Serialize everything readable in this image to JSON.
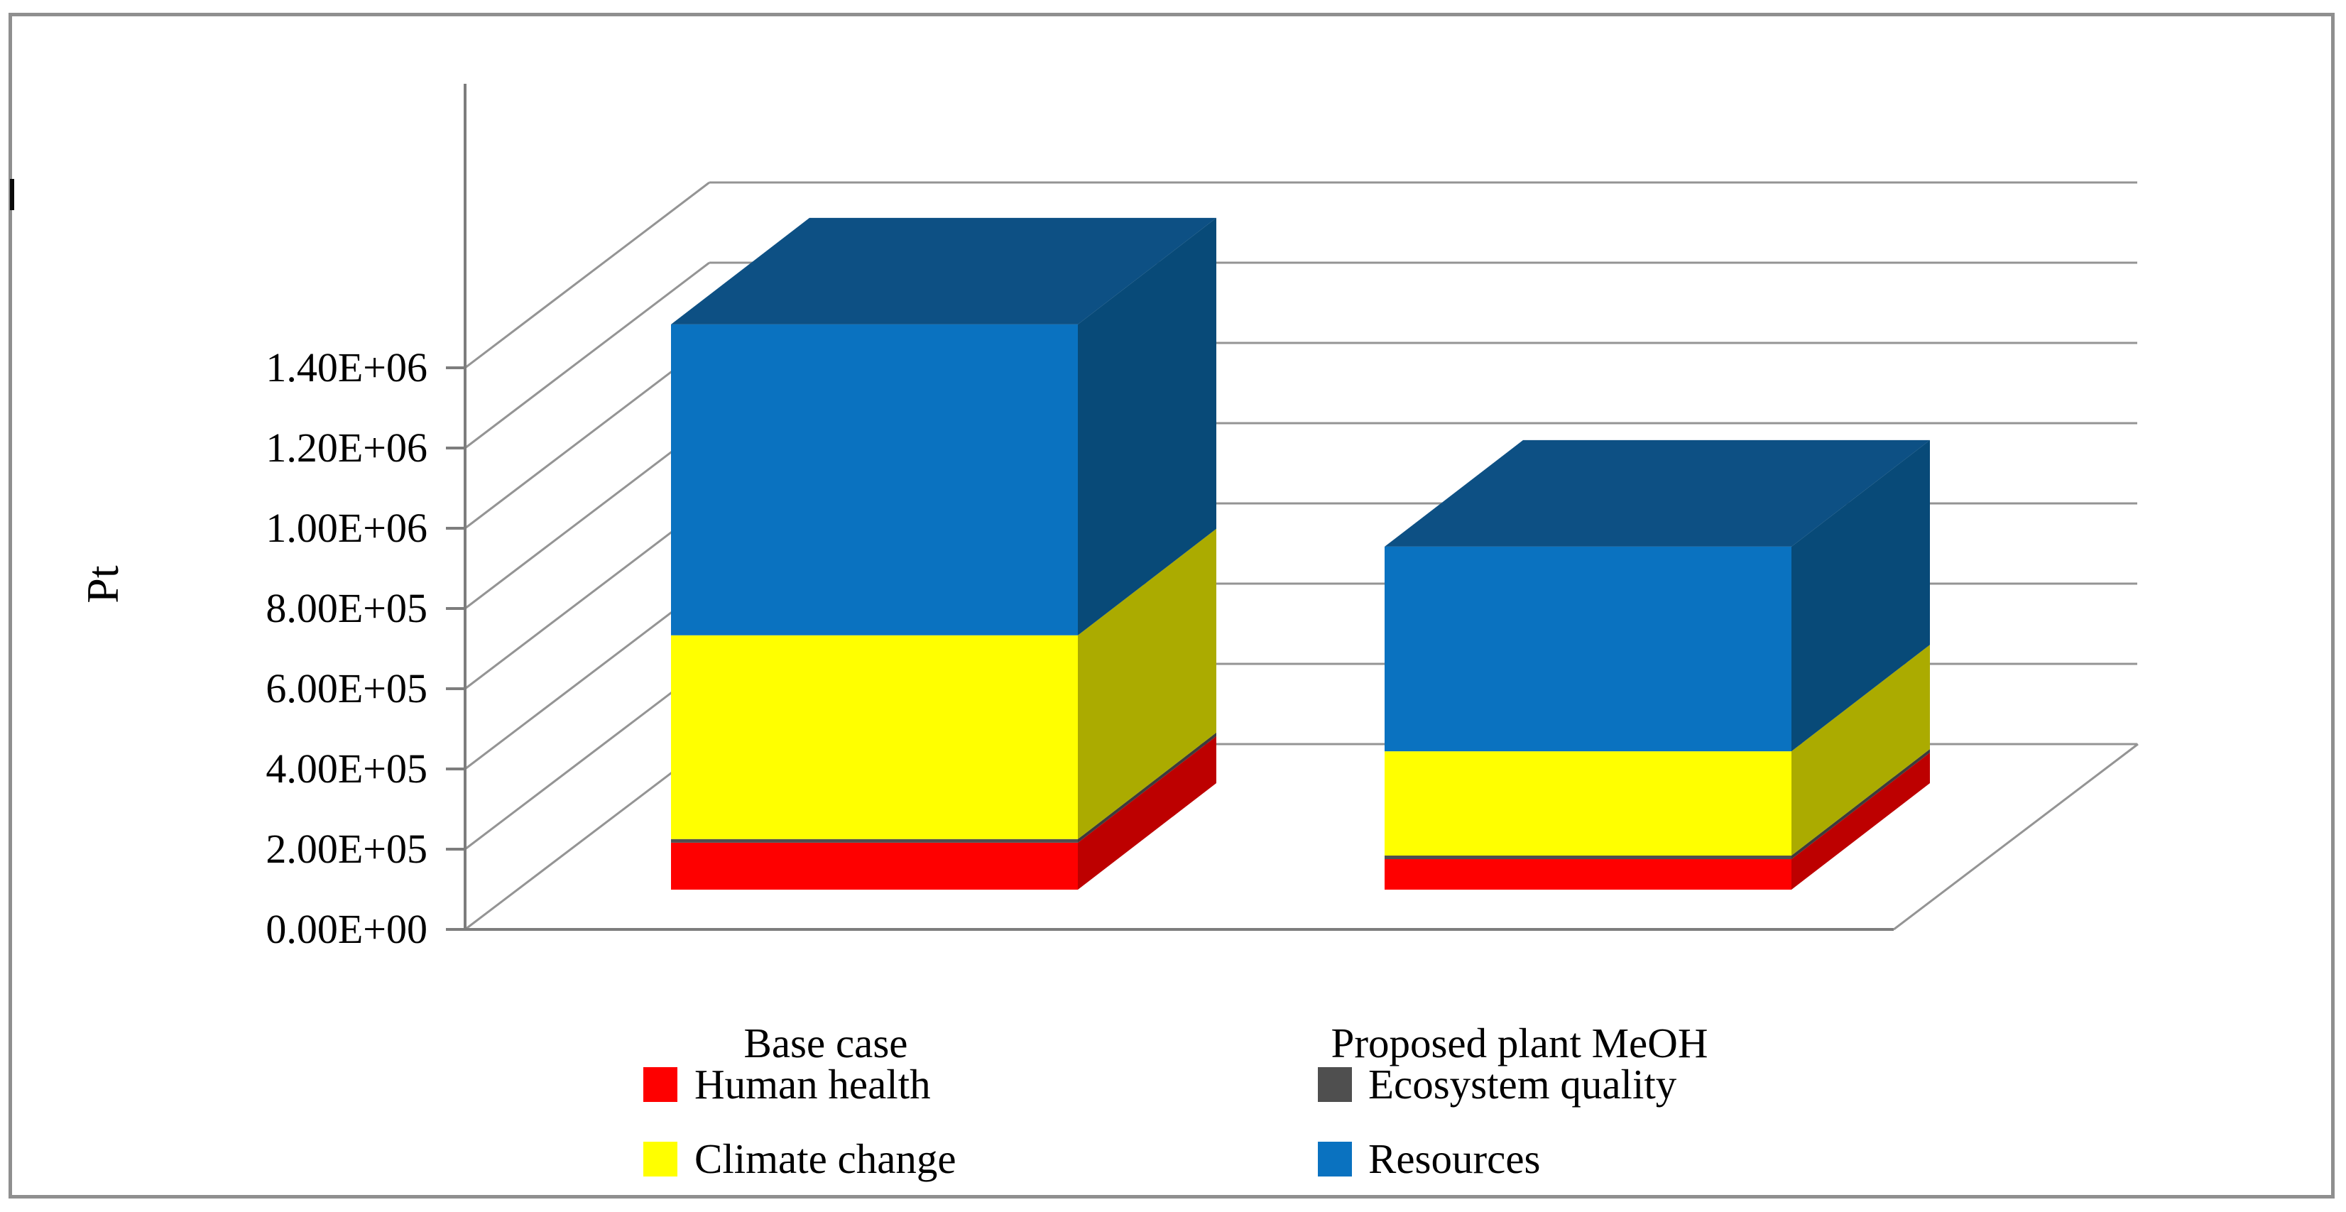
{
  "figure": {
    "y_axis_title": "Pt"
  },
  "chart_data": {
    "type": "bar",
    "subtype": "3d-stacked-column",
    "title": "",
    "xlabel": "",
    "ylabel": "Pt",
    "categories": [
      "Base case",
      "Proposed plant MeOH"
    ],
    "series": [
      {
        "name": "Human health",
        "color": "#fe0000",
        "side_color": "#bd0000",
        "values": [
          117000,
          76000
        ]
      },
      {
        "name": "Ecosystem quality",
        "color": "#4f4f4f",
        "side_color": "#3c3c3c",
        "values": [
          9000,
          9000
        ]
      },
      {
        "name": "Climate change",
        "color": "#ffff00",
        "side_color": "#abab00",
        "values": [
          508000,
          260000
        ]
      },
      {
        "name": "Resources",
        "color": "#0a72c0",
        "side_color": "#084a78",
        "top_color": "#0d5084",
        "values": [
          775000,
          510000
        ]
      }
    ],
    "stack_order_bottom_to_top": [
      "Human health",
      "Ecosystem quality",
      "Climate change",
      "Resources"
    ],
    "y_tick_labels": [
      "0.00E+00",
      "2.00E+05",
      "4.00E+05",
      "6.00E+05",
      "8.00E+05",
      "1.00E+06",
      "1.20E+06",
      "1.40E+06"
    ],
    "ylim": [
      0,
      1400000
    ],
    "major_unit": 200000,
    "gridlines": true,
    "legend_position": "bottom",
    "legend_columns": [
      [
        "Human health",
        "Climate change"
      ],
      [
        "Ecosystem quality",
        "Resources"
      ]
    ]
  }
}
